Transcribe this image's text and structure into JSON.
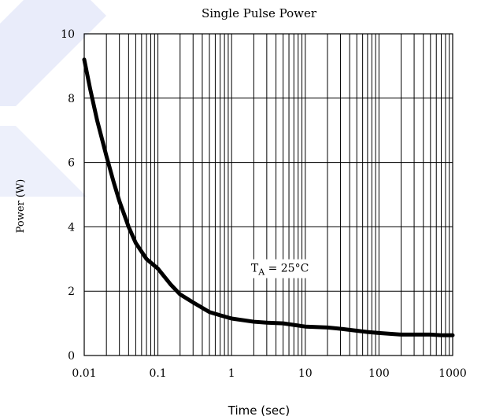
{
  "colors": {
    "accent_watermark": "#e9ecfa",
    "curve": "#000000"
  },
  "chart_data": {
    "type": "line",
    "title": "Single Pulse Power",
    "xlabel": "Time (sec)",
    "ylabel": "Power  (W)",
    "xscale": "log",
    "xlim": [
      0.01,
      1000
    ],
    "ylim": [
      0,
      10
    ],
    "xticks": [
      0.01,
      0.1,
      1,
      10,
      100,
      1000
    ],
    "xtick_labels": [
      "0.01",
      "0.1",
      "1",
      "10",
      "100",
      "1000"
    ],
    "yticks": [
      0,
      2,
      4,
      6,
      8,
      10
    ],
    "ytick_labels": [
      "0",
      "2",
      "4",
      "6",
      "8",
      "10"
    ],
    "grid": true,
    "annotation": {
      "label_main": "T",
      "label_sub": "A",
      "label_rest": " = 25°C",
      "x": 3,
      "y": 2.6
    },
    "series": [
      {
        "name": "",
        "x": [
          0.01,
          0.012,
          0.015,
          0.02,
          0.025,
          0.03,
          0.04,
          0.05,
          0.07,
          0.1,
          0.15,
          0.2,
          0.3,
          0.5,
          0.7,
          1,
          2,
          3,
          5,
          7,
          10,
          20,
          30,
          50,
          70,
          100,
          200,
          300,
          500,
          700,
          1000
        ],
        "y": [
          9.2,
          8.3,
          7.3,
          6.2,
          5.4,
          4.8,
          4.0,
          3.5,
          3.0,
          2.7,
          2.2,
          1.9,
          1.65,
          1.35,
          1.25,
          1.15,
          1.05,
          1.02,
          1.0,
          0.95,
          0.9,
          0.87,
          0.83,
          0.77,
          0.73,
          0.7,
          0.65,
          0.65,
          0.65,
          0.63,
          0.63
        ]
      }
    ]
  }
}
